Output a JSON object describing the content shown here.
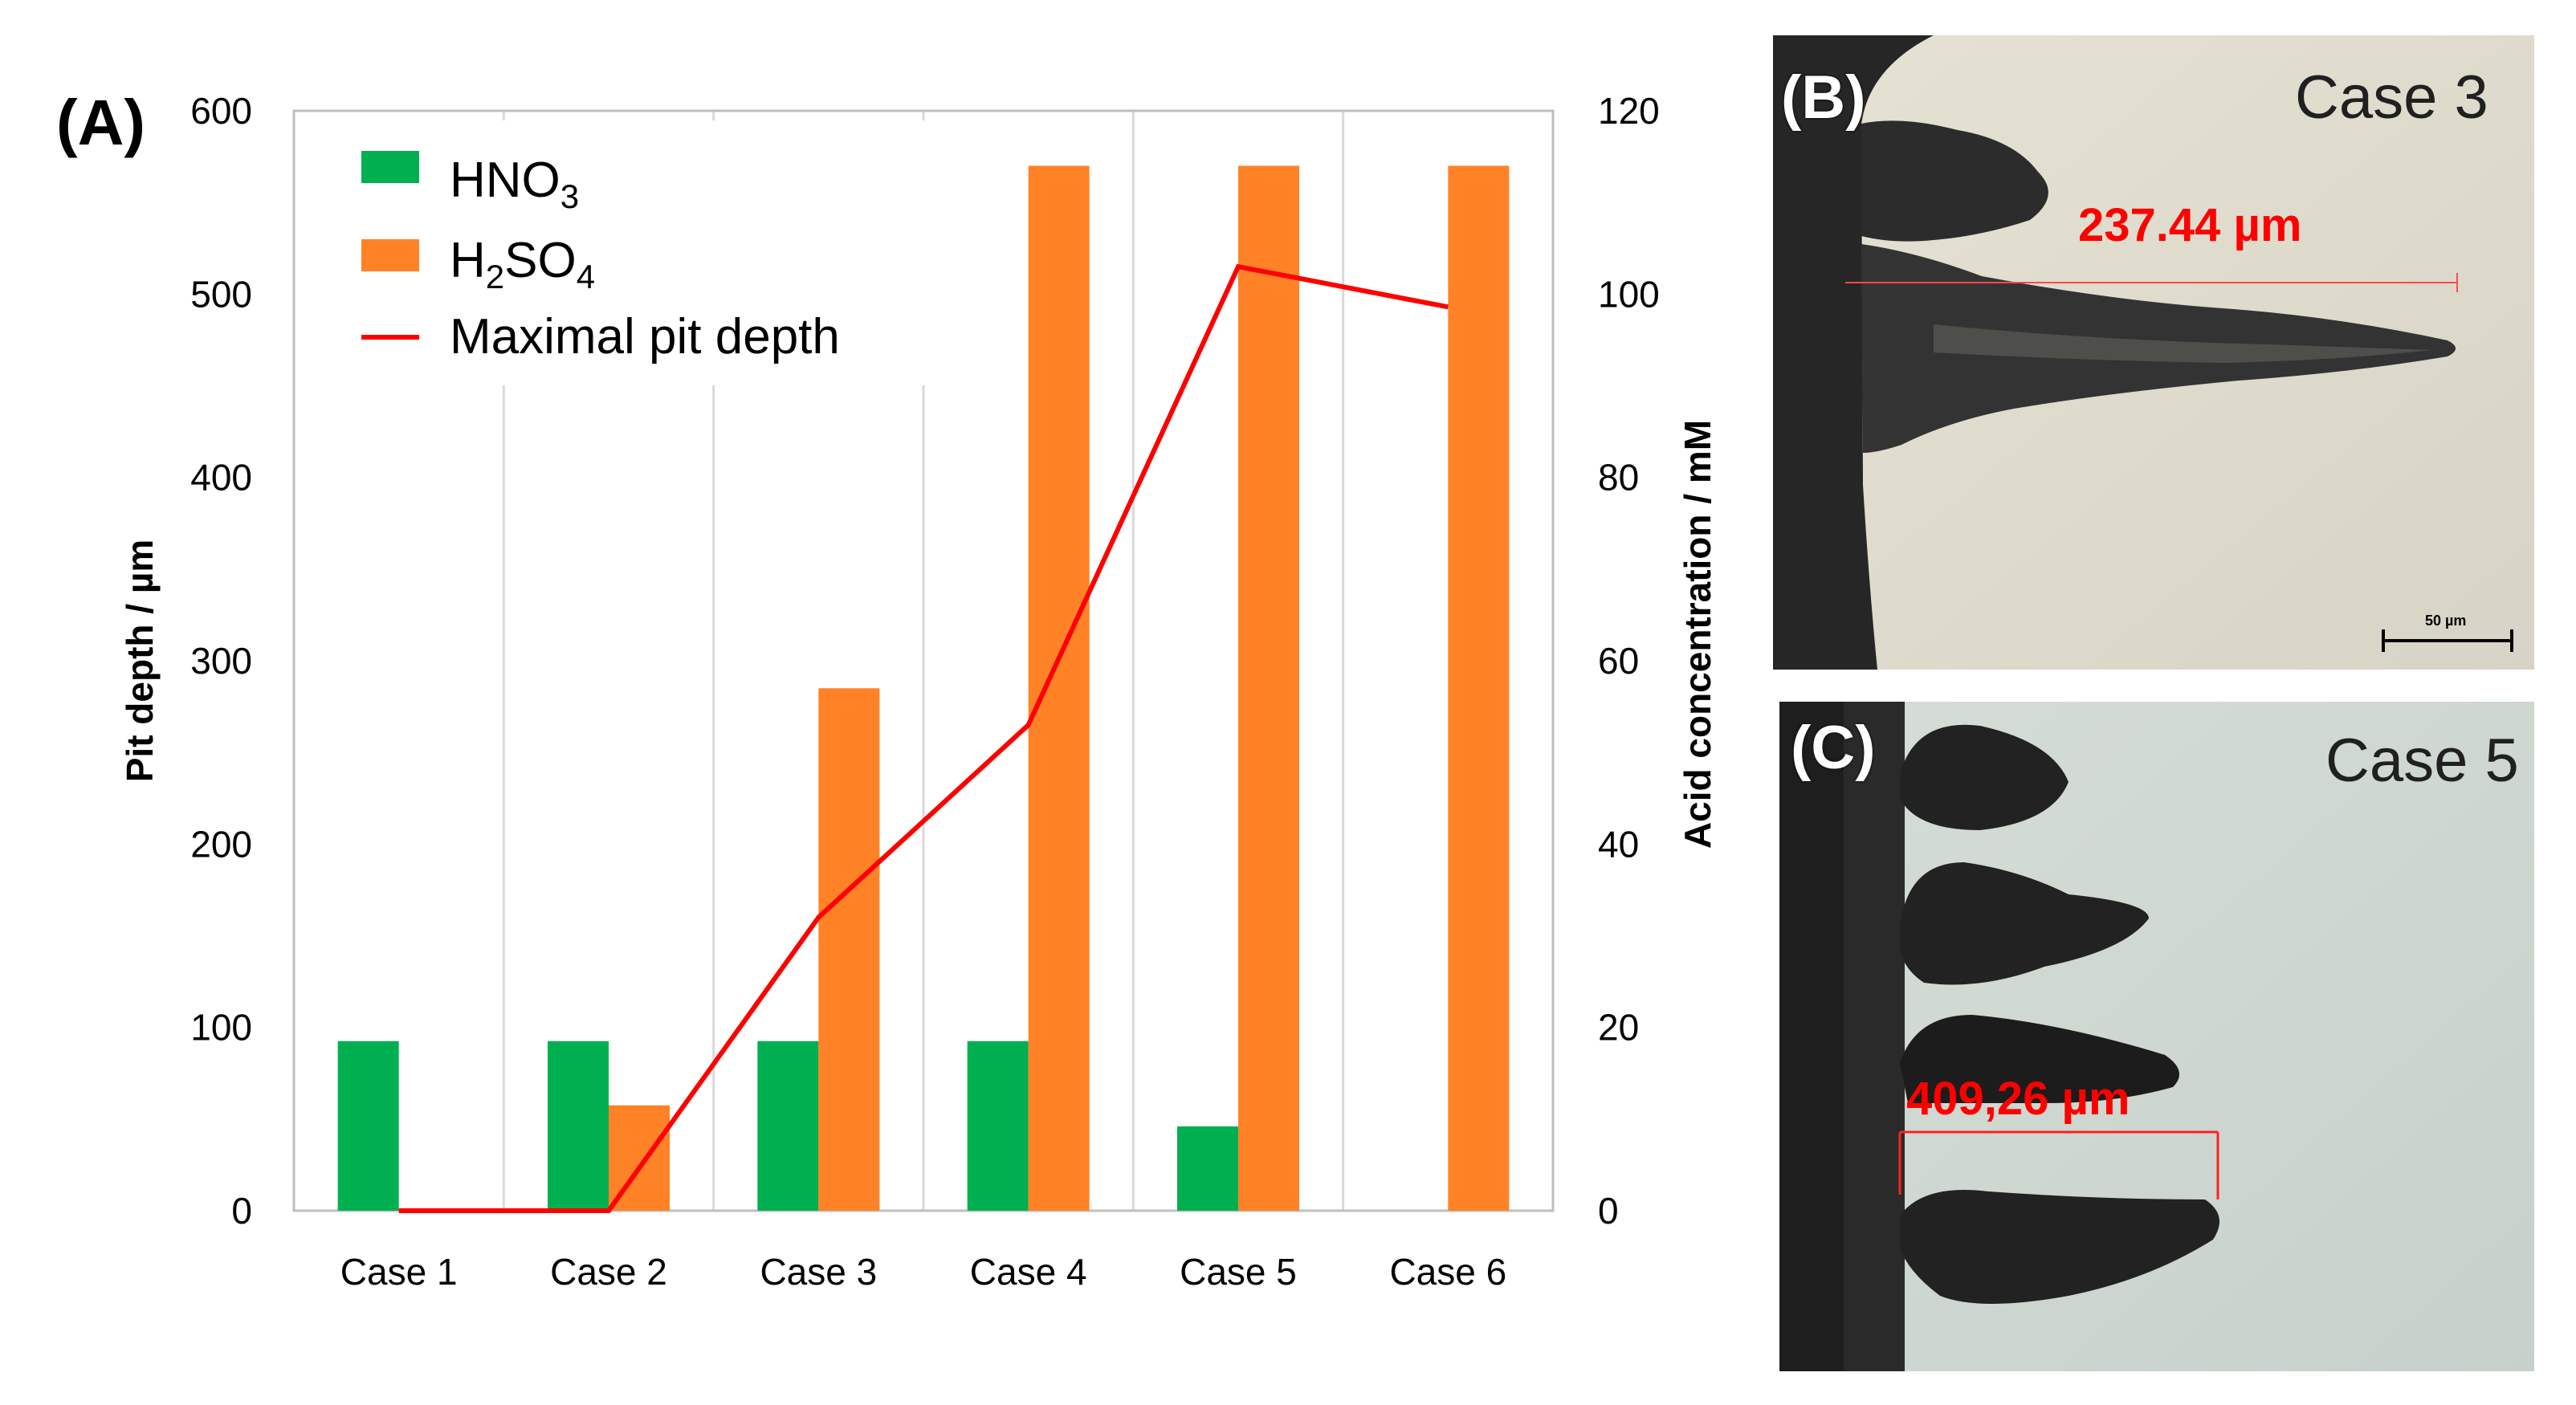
{
  "chart_data": {
    "type": "bar",
    "panel_label": "(A)",
    "categories": [
      "Case 1",
      "Case 2",
      "Case 3",
      "Case 4",
      "Case 5",
      "Case 6"
    ],
    "y_left": {
      "label": "Pit depth / µm",
      "range": [
        0,
        600
      ],
      "ticks": [
        0,
        100,
        200,
        300,
        400,
        500,
        600
      ]
    },
    "y_right": {
      "label": "Acid concentration / mM",
      "range": [
        0,
        120
      ],
      "ticks": [
        0,
        20,
        40,
        60,
        80,
        100,
        120
      ]
    },
    "series": [
      {
        "name": "HNO",
        "subscript": "3",
        "kind": "bar",
        "axis": "right",
        "color": "#00b050",
        "values": [
          18.5,
          18.5,
          18.5,
          18.5,
          9.2,
          0
        ]
      },
      {
        "name": "H",
        "name_sub1": "2",
        "name_mid": "SO",
        "name_sub2": "4",
        "kind": "bar",
        "axis": "right",
        "color": "#ff8326",
        "values": [
          0,
          11.5,
          57,
          114,
          114,
          114
        ]
      },
      {
        "name": "Maximal pit depth",
        "kind": "line",
        "axis": "left",
        "color": "#ff0000",
        "values": [
          0,
          0,
          160,
          265,
          515,
          493
        ]
      }
    ],
    "legend_position": "top-left",
    "grid": "vertical"
  },
  "micrographs": [
    {
      "panel_label": "(B)",
      "case_label": "Case 3",
      "measurement": "237.44 µm",
      "scalebar": "50 µm"
    },
    {
      "panel_label": "(C)",
      "case_label": "Case 5",
      "measurement": "409,26 µm"
    }
  ]
}
